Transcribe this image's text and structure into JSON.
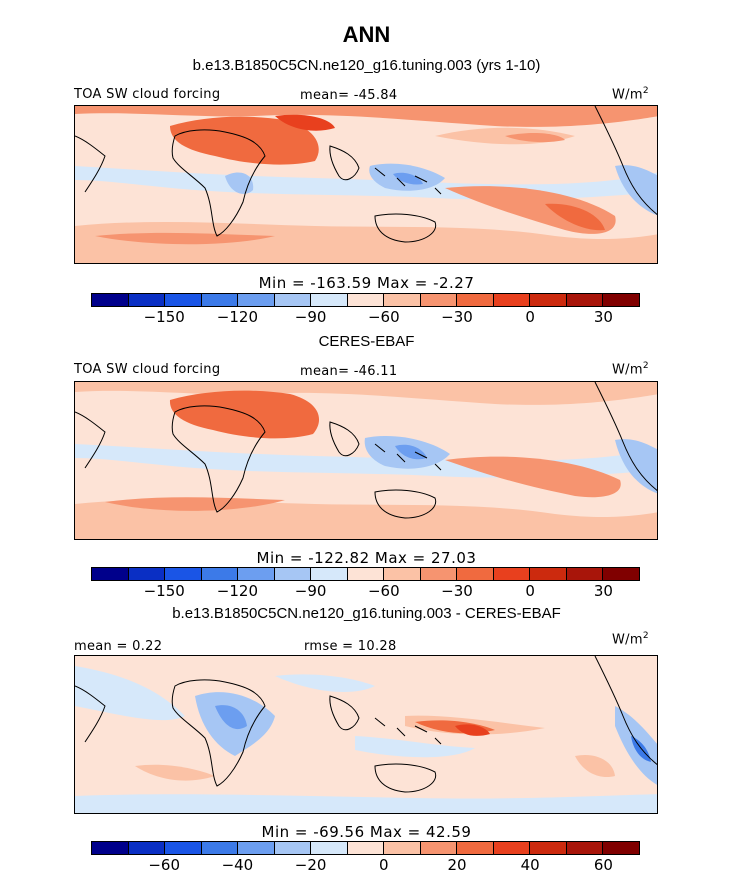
{
  "title": "ANN",
  "panels": [
    {
      "heading": "b.e13.B1850C5CN.ne120_g16.tuning.003 (yrs 1-10)",
      "left_label": "TOA SW cloud forcing",
      "center_label": "mean= -45.84",
      "right_label": "W/m",
      "right_label_sup": "2",
      "minmax": "Min = -163.59 Max =  -2.27",
      "colorbar": {
        "colors": [
          "#00008b",
          "#0a2fc4",
          "#1a55e6",
          "#3c7ae8",
          "#6c9ef0",
          "#a6c6f4",
          "#d6e8fa",
          "#fde3d6",
          "#fbc2a6",
          "#f69470",
          "#f06a3f",
          "#e8401e",
          "#cc2a0e",
          "#a8150a",
          "#800000"
        ],
        "tick_labels": [
          "-150",
          "-120",
          "-90",
          "-60",
          "-30",
          "0",
          "30"
        ]
      }
    },
    {
      "heading": "CERES-EBAF",
      "left_label": "TOA SW cloud forcing",
      "center_label": "mean= -46.11",
      "right_label": "W/m",
      "right_label_sup": "2",
      "minmax": "Min = -122.82 Max =  27.03",
      "colorbar": {
        "colors": [
          "#00008b",
          "#0a2fc4",
          "#1a55e6",
          "#3c7ae8",
          "#6c9ef0",
          "#a6c6f4",
          "#d6e8fa",
          "#fde3d6",
          "#fbc2a6",
          "#f69470",
          "#f06a3f",
          "#e8401e",
          "#cc2a0e",
          "#a8150a",
          "#800000"
        ],
        "tick_labels": [
          "-150",
          "-120",
          "-90",
          "-60",
          "-30",
          "0",
          "30"
        ]
      }
    },
    {
      "heading": "b.e13.B1850C5CN.ne120_g16.tuning.003 - CERES-EBAF",
      "left_label": "mean =   0.22",
      "center_label": "rmse =  10.28",
      "right_label": "W/m",
      "right_label_sup": "2",
      "minmax": "Min = -69.56 Max =  42.59",
      "colorbar": {
        "colors": [
          "#00008b",
          "#0a2fc4",
          "#1a55e6",
          "#3c7ae8",
          "#6c9ef0",
          "#a6c6f4",
          "#d6e8fa",
          "#fde3d6",
          "#fbc2a6",
          "#f69470",
          "#f06a3f",
          "#e8401e",
          "#cc2a0e",
          "#a8150a",
          "#800000"
        ],
        "tick_labels": [
          "-60",
          "-40",
          "-20",
          "0",
          "20",
          "40",
          "60"
        ]
      }
    }
  ]
}
